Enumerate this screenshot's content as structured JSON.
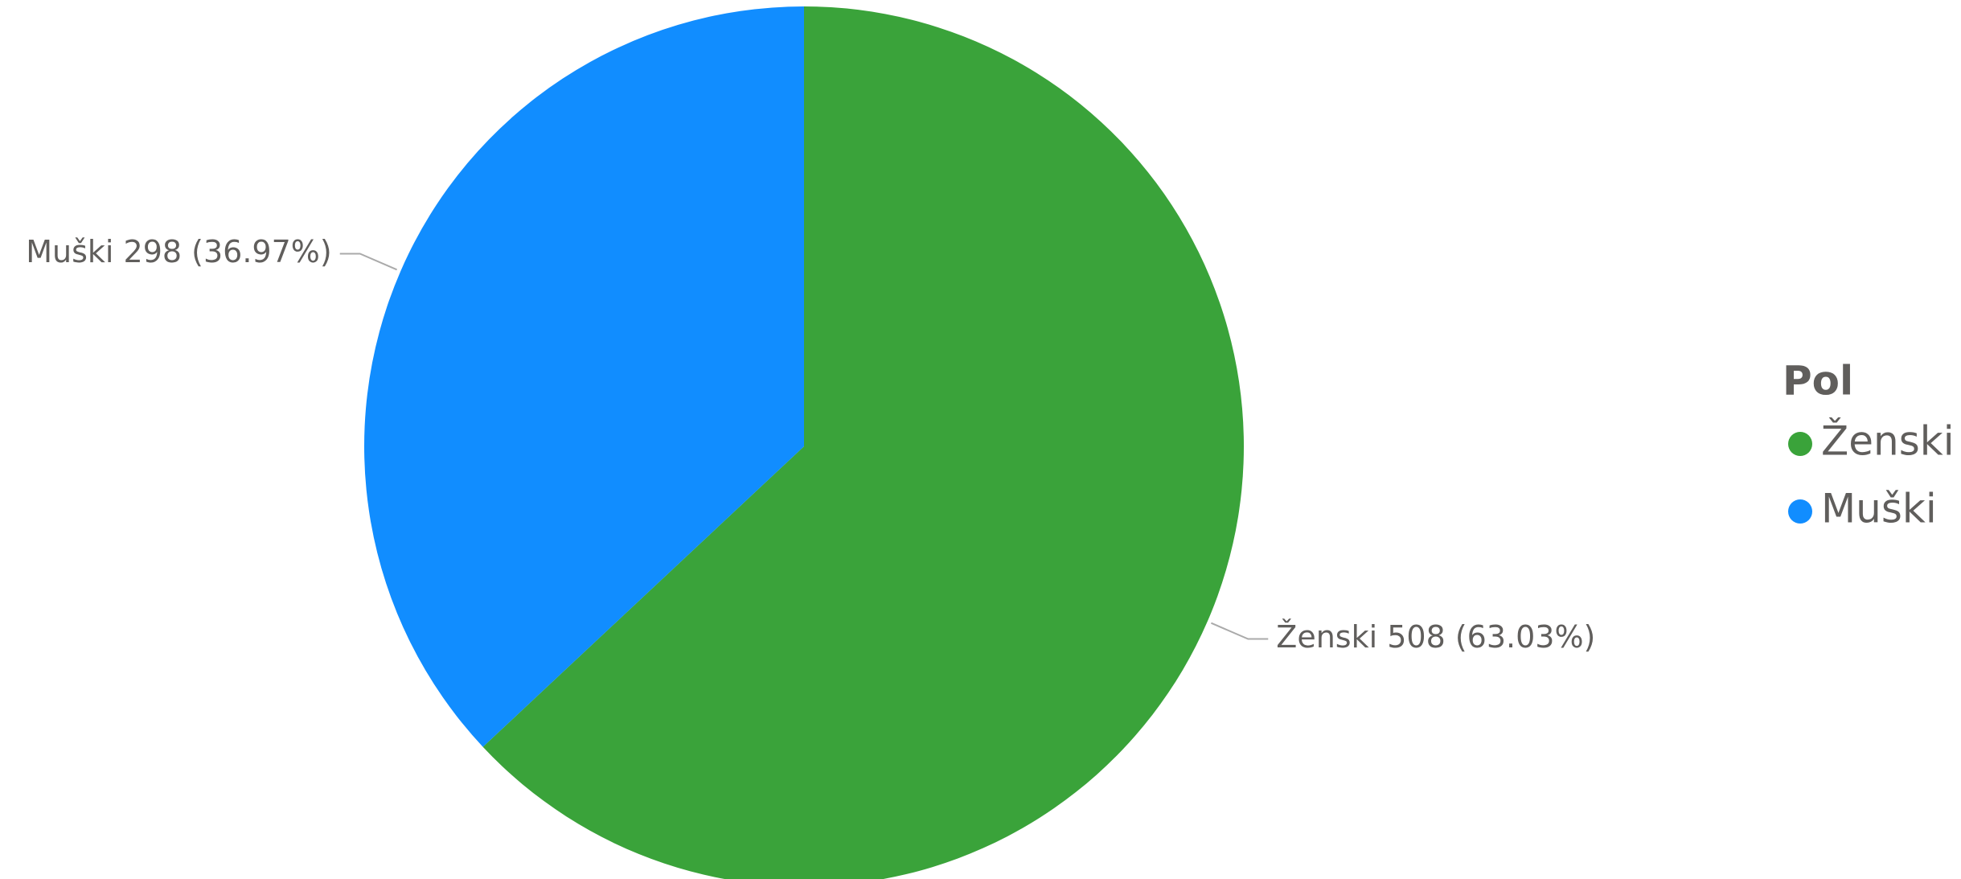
{
  "chart_data": {
    "type": "pie",
    "categories": [
      "Ženski",
      "Muški"
    ],
    "values": [
      508,
      298
    ],
    "percentages": [
      63.03,
      36.97
    ],
    "value_labels": [
      "Ženski 508 (63.03%)",
      "Muški 298 (36.97%)"
    ],
    "colors": [
      "#3aa33a",
      "#118dff"
    ],
    "legend_title": "Pol",
    "legend": "right"
  }
}
